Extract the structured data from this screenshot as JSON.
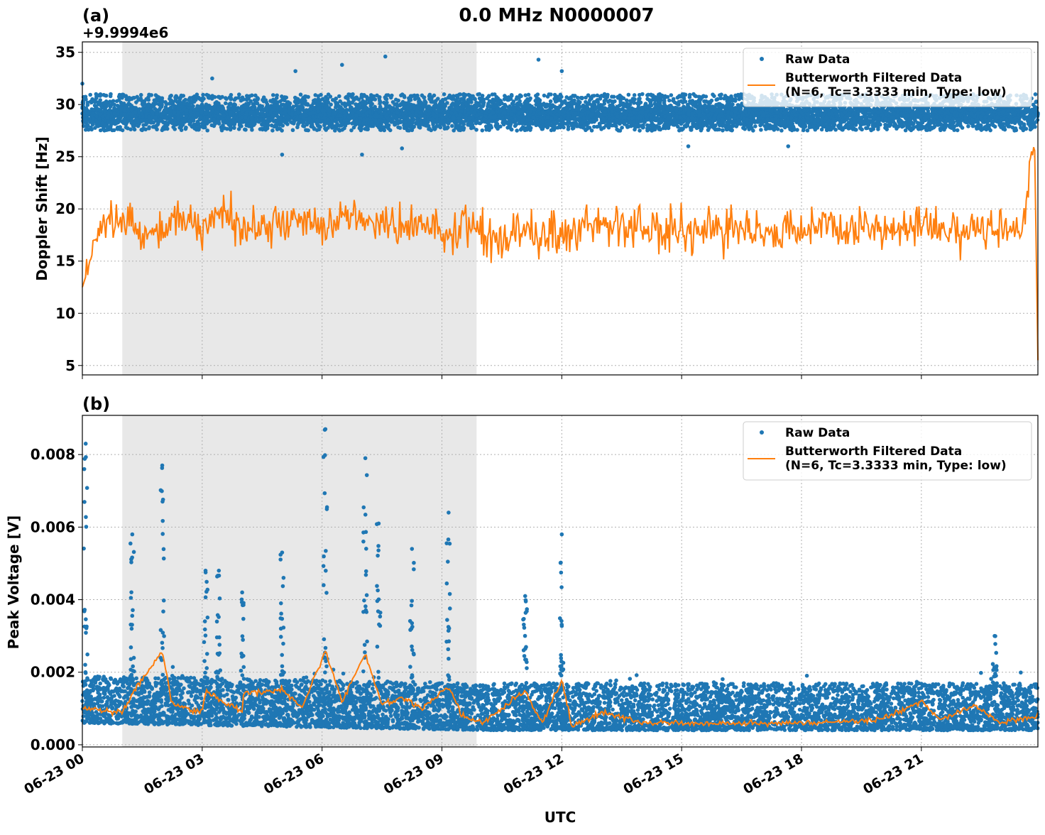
{
  "chart_data": [
    {
      "type": "scatter+line",
      "panel_label": "(a)",
      "title": "0.0 MHz N0000007",
      "ylabel": "Doppler Shift [Hz]",
      "offset_label": "+9.9994e6",
      "xlabel": "",
      "ylim": [
        4.1,
        36.0
      ],
      "yticks": [
        5,
        10,
        15,
        20,
        25,
        30,
        35
      ],
      "xlim": [
        "06-23 00:00",
        "06-23 23:55"
      ],
      "xticks": [
        "06-23 00",
        "06-23 03",
        "06-23 06",
        "06-23 09",
        "06-23 12",
        "06-23 15",
        "06-23 18",
        "06-23 21"
      ],
      "grid": true,
      "legend_placement": "top-right",
      "shaded_interval": [
        "06-23 01:00",
        "06-23 09:52"
      ],
      "colors": {
        "raw": "#1f77b4",
        "filtered": "#ff7f0e",
        "shade": "#e8e8e8"
      },
      "series": [
        {
          "name": "Raw Data",
          "kind": "points",
          "band_low": 27.5,
          "band_high": 31.0,
          "typical": 29.0,
          "outliers": [
            [
              "00:00",
              32.0
            ],
            [
              "03:15",
              32.5
            ],
            [
              "05:20",
              33.2
            ],
            [
              "06:30",
              33.8
            ],
            [
              "07:35",
              34.6
            ],
            [
              "07:00",
              25.2
            ],
            [
              "05:00",
              25.2
            ],
            [
              "11:25",
              34.3
            ],
            [
              "12:00",
              33.2
            ],
            [
              "08:00",
              25.8
            ],
            [
              "15:10",
              26.0
            ],
            [
              "17:40",
              26.0
            ]
          ]
        },
        {
          "name": "Butterworth Filtered Data\n(N=6, Tc=3.3333 min, Type: low)",
          "kind": "line",
          "points": [
            [
              "00:00",
              12.5
            ],
            [
              "00:30",
              18.5
            ],
            [
              "01:00",
              19.0
            ],
            [
              "01:30",
              17.5
            ],
            [
              "02:00",
              18.0
            ],
            [
              "02:30",
              19.5
            ],
            [
              "03:00",
              18.0
            ],
            [
              "03:30",
              19.5
            ],
            [
              "04:00",
              18.5
            ],
            [
              "04:30",
              17.8
            ],
            [
              "05:00",
              18.5
            ],
            [
              "05:30",
              19.0
            ],
            [
              "06:00",
              18.0
            ],
            [
              "06:30",
              19.0
            ],
            [
              "07:00",
              18.5
            ],
            [
              "07:30",
              19.2
            ],
            [
              "08:00",
              18.0
            ],
            [
              "08:30",
              18.5
            ],
            [
              "09:00",
              18.0
            ],
            [
              "09:30",
              18.5
            ],
            [
              "10:00",
              17.5
            ],
            [
              "10:30",
              17.0
            ],
            [
              "11:00",
              18.0
            ],
            [
              "11:30",
              17.5
            ],
            [
              "12:00",
              18.0
            ],
            [
              "12:30",
              18.5
            ],
            [
              "13:00",
              18.5
            ],
            [
              "13:30",
              19.0
            ],
            [
              "14:00",
              18.0
            ],
            [
              "14:30",
              17.5
            ],
            [
              "15:00",
              18.0
            ],
            [
              "15:30",
              18.5
            ],
            [
              "16:00",
              18.0
            ],
            [
              "16:30",
              18.5
            ],
            [
              "17:00",
              18.0
            ],
            [
              "17:30",
              17.5
            ],
            [
              "18:00",
              18.0
            ],
            [
              "18:30",
              19.0
            ],
            [
              "19:00",
              18.0
            ],
            [
              "19:30",
              18.5
            ],
            [
              "20:00",
              17.5
            ],
            [
              "20:30",
              18.0
            ],
            [
              "21:00",
              18.0
            ],
            [
              "21:30",
              18.5
            ],
            [
              "22:00",
              18.0
            ],
            [
              "22:30",
              18.5
            ],
            [
              "23:00",
              18.0
            ],
            [
              "23:30",
              18.0
            ],
            [
              "23:50",
              26.5
            ],
            [
              "23:55",
              5.5
            ]
          ]
        }
      ]
    },
    {
      "type": "scatter+line",
      "panel_label": "(b)",
      "ylabel": "Peak Voltage [V]",
      "xlabel": "UTC",
      "ylim": [
        -6e-05,
        0.00908
      ],
      "yticks": [
        "0.000",
        "0.002",
        "0.004",
        "0.006",
        "0.008"
      ],
      "xlim": [
        "06-23 00:00",
        "06-23 23:55"
      ],
      "xticks": [
        "06-23 00",
        "06-23 03",
        "06-23 06",
        "06-23 09",
        "06-23 12",
        "06-23 15",
        "06-23 18",
        "06-23 21"
      ],
      "grid": true,
      "legend_placement": "top-right",
      "shaded_interval": [
        "06-23 01:00",
        "06-23 09:52"
      ],
      "colors": {
        "raw": "#1f77b4",
        "filtered": "#ff7f0e",
        "shade": "#e8e8e8"
      },
      "series": [
        {
          "name": "Raw Data",
          "kind": "points",
          "band": [
            [
              "00:00",
              0.0006,
              0.0019
            ],
            [
              "10:00",
              0.0004,
              0.0017
            ],
            [
              "23:55",
              0.0004,
              0.0017
            ]
          ],
          "spikes": [
            [
              "00:05",
              0.0083
            ],
            [
              "01:15",
              0.0058
            ],
            [
              "02:00",
              0.0077
            ],
            [
              "03:05",
              0.0048
            ],
            [
              "03:25",
              0.0048
            ],
            [
              "04:00",
              0.0042
            ],
            [
              "05:00",
              0.0053
            ],
            [
              "06:05",
              0.0087
            ],
            [
              "07:05",
              0.0079
            ],
            [
              "07:25",
              0.0061
            ],
            [
              "08:15",
              0.0054
            ],
            [
              "09:10",
              0.0064
            ],
            [
              "11:05",
              0.0041
            ],
            [
              "12:00",
              0.0058
            ],
            [
              "22:50",
              0.003
            ]
          ]
        },
        {
          "name": "Butterworth Filtered Data\n(N=6, Tc=3.3333 min, Type: low)",
          "kind": "line",
          "points": [
            [
              "00:00",
              0.001
            ],
            [
              "01:00",
              0.0009
            ],
            [
              "01:15",
              0.0014
            ],
            [
              "02:00",
              0.0026
            ],
            [
              "02:15",
              0.0011
            ],
            [
              "03:00",
              0.0009
            ],
            [
              "03:05",
              0.0015
            ],
            [
              "04:00",
              0.0009
            ],
            [
              "04:00",
              0.0014
            ],
            [
              "05:00",
              0.0015
            ],
            [
              "05:30",
              0.001
            ],
            [
              "06:05",
              0.0026
            ],
            [
              "06:30",
              0.0012
            ],
            [
              "07:05",
              0.0025
            ],
            [
              "07:30",
              0.0011
            ],
            [
              "08:00",
              0.0013
            ],
            [
              "08:30",
              0.001
            ],
            [
              "09:10",
              0.0016
            ],
            [
              "09:30",
              0.0008
            ],
            [
              "10:00",
              0.0006
            ],
            [
              "11:05",
              0.0015
            ],
            [
              "11:30",
              0.0006
            ],
            [
              "12:00",
              0.0018
            ],
            [
              "12:15",
              0.0005
            ],
            [
              "13:00",
              0.0009
            ],
            [
              "14:00",
              0.0006
            ],
            [
              "16:00",
              0.0006
            ],
            [
              "18:00",
              0.0006
            ],
            [
              "20:00",
              0.0007
            ],
            [
              "21:00",
              0.0012
            ],
            [
              "21:30",
              0.0007
            ],
            [
              "22:20",
              0.0011
            ],
            [
              "23:00",
              0.0006
            ],
            [
              "23:55",
              0.0008
            ]
          ]
        }
      ]
    }
  ]
}
